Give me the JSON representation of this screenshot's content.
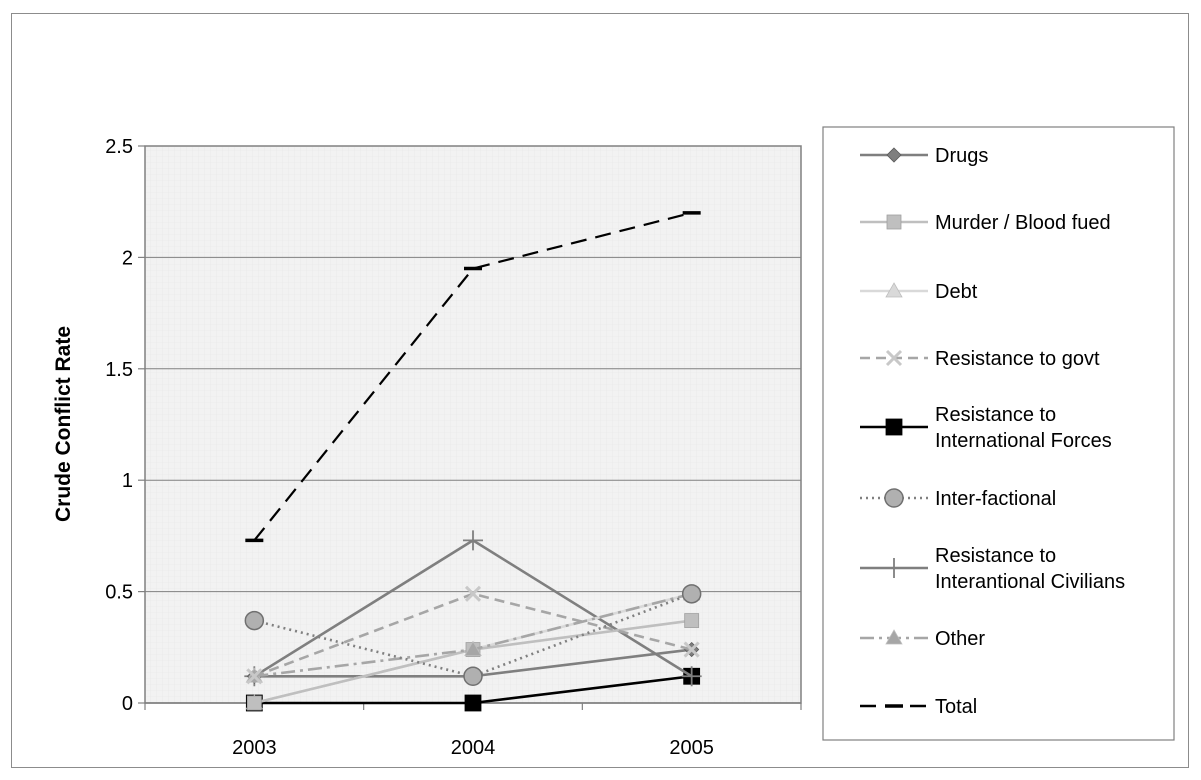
{
  "chart_data": {
    "type": "line",
    "title": "",
    "xlabel": "",
    "ylabel": "Crude Conflict Rate",
    "categories": [
      "2003",
      "2004",
      "2005"
    ],
    "ylim": [
      0,
      2.5
    ],
    "yticks": [
      "0",
      "0.5",
      "1",
      "1.5",
      "2",
      "2.5"
    ],
    "grid": true,
    "legend_position": "right",
    "series": [
      {
        "name": "Drugs",
        "values": [
          0.12,
          0.12,
          0.24
        ],
        "color": "#7f7f7f",
        "dash": "solid",
        "marker": "diamond"
      },
      {
        "name": "Murder / Blood fued",
        "values": [
          0,
          0.24,
          0.37
        ],
        "color": "#bfbfbf",
        "dash": "solid",
        "marker": "square"
      },
      {
        "name": "Debt",
        "values": [
          0,
          0.24,
          0.49
        ],
        "color": "#d9d9d9",
        "dash": "solid",
        "marker": "triangle"
      },
      {
        "name": "Resistance to govt",
        "values": [
          0.12,
          0.49,
          0.24
        ],
        "color": "#a6a6a6",
        "dash": "dash",
        "marker": "x"
      },
      {
        "name": "Resistance to International Forces",
        "legend_lines": [
          "Resistance to",
          "International Forces"
        ],
        "values": [
          0,
          0,
          0.12
        ],
        "color": "#000000",
        "dash": "solid",
        "marker": "bigsquare"
      },
      {
        "name": "Inter-factional",
        "values": [
          0.37,
          0.12,
          0.49
        ],
        "color": "#808080",
        "dash": "dot",
        "marker": "circle"
      },
      {
        "name": "Resistance to Interantional Civilians",
        "legend_lines": [
          "Resistance to",
          "Interantional Civilians"
        ],
        "values": [
          0.12,
          0.73,
          0.12
        ],
        "color": "#7f7f7f",
        "dash": "solid",
        "marker": "plus"
      },
      {
        "name": "Other",
        "values": [
          0.12,
          0.24,
          0.49
        ],
        "color": "#a6a6a6",
        "dash": "dashdot",
        "marker": "triangle"
      },
      {
        "name": "Total",
        "values": [
          0.73,
          1.95,
          2.2
        ],
        "color": "#000000",
        "dash": "longdash",
        "marker": "hbar"
      }
    ]
  }
}
